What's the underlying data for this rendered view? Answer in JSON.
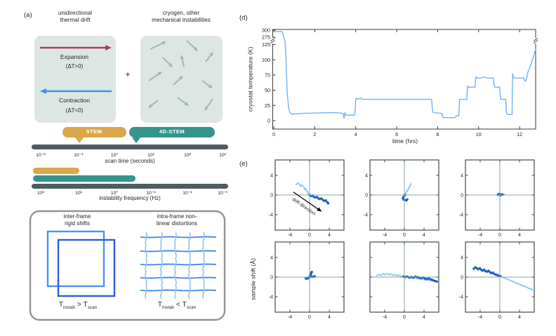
{
  "panel_a": {
    "label": "(a)",
    "thermal_box": {
      "title_line1": "unidirectional",
      "title_line2": "thermal drift",
      "expansion": "Expansion",
      "expansion_delta": "(ΔT>0)",
      "contraction": "Contraction",
      "contraction_delta": "(ΔT<0)"
    },
    "plus": "+",
    "instability_box": {
      "title_line1": "cryogen, other",
      "title_line2": "mechanical instabilities"
    },
    "stem_badge": "STEM",
    "fourd_stem_badge": "4D-STEM",
    "scan_time_axis": {
      "ticks": [
        "10⁻²",
        "10⁻¹",
        "10⁰",
        "10¹",
        "10²",
        "10³"
      ],
      "label": "scan time (seconds)"
    },
    "instability_axis": {
      "ticks": [
        "10²",
        "10¹",
        "10⁰",
        "10⁻¹",
        "10⁻²",
        "10⁻³"
      ],
      "label": "instability frequency (Hz)"
    },
    "distortion_box": {
      "interframe_title_line1": "inter-frame",
      "interframe_title_line2": "rigid shifts",
      "intraframe_title_line1": "intra-frame non-",
      "intraframe_title_line2": "linear distortions",
      "interframe_relation": {
        "lhs": "T",
        "lhs_sub": "instab",
        "op": ">",
        "rhs": "T",
        "rhs_sub": "scan"
      },
      "intraframe_relation": {
        "lhs": "T",
        "lhs_sub": "instab",
        "op": "<",
        "rhs": "T",
        "rhs_sub": "scan"
      }
    }
  },
  "panel_d": {
    "label": "(d)"
  },
  "panel_e": {
    "label": "(e)"
  },
  "chart_data": [
    {
      "id": "cryostat-temperature-vs-time",
      "type": "line",
      "title": "",
      "xlabel": "time (hrs)",
      "ylabel": "cryostat temperature (K)",
      "x_ticks": [
        0,
        2,
        4,
        6,
        8,
        10,
        12
      ],
      "y_ticks": [
        300,
        275,
        125,
        100,
        75,
        50,
        25,
        0
      ],
      "y_axis_break_between": [
        130,
        270
      ],
      "xlim": [
        -0.07,
        12.8
      ],
      "grid": false,
      "line_color": "#74b2f4",
      "points": [
        [
          0,
          295
        ],
        [
          0.38,
          295
        ],
        [
          0.43,
          292
        ],
        [
          0.5,
          272
        ],
        [
          0.55,
          180
        ],
        [
          0.6,
          100
        ],
        [
          0.65,
          48
        ],
        [
          0.72,
          22
        ],
        [
          0.78,
          14
        ],
        [
          0.85,
          11
        ],
        [
          1.0,
          11
        ],
        [
          1.4,
          12
        ],
        [
          2.0,
          12.5
        ],
        [
          2.6,
          13
        ],
        [
          3.1,
          13
        ],
        [
          3.35,
          12
        ],
        [
          3.4,
          11
        ],
        [
          3.43,
          4
        ],
        [
          3.47,
          13
        ],
        [
          3.52,
          9
        ],
        [
          3.95,
          9
        ],
        [
          3.98,
          20
        ],
        [
          4.0,
          34
        ],
        [
          4.03,
          37
        ],
        [
          4.07,
          35
        ],
        [
          4.26,
          37
        ],
        [
          4.3,
          35
        ],
        [
          7.7,
          35
        ],
        [
          7.76,
          14
        ],
        [
          7.8,
          13
        ],
        [
          8.2,
          12
        ],
        [
          8.27,
          5
        ],
        [
          8.85,
          5
        ],
        [
          8.9,
          8
        ],
        [
          9.03,
          8
        ],
        [
          9.07,
          35
        ],
        [
          9.42,
          35
        ],
        [
          9.46,
          57
        ],
        [
          9.5,
          55
        ],
        [
          9.82,
          55
        ],
        [
          9.86,
          72
        ],
        [
          9.92,
          70
        ],
        [
          10.15,
          70
        ],
        [
          10.25,
          72
        ],
        [
          10.35,
          70
        ],
        [
          10.72,
          70
        ],
        [
          10.76,
          57
        ],
        [
          10.82,
          55
        ],
        [
          11.03,
          55
        ],
        [
          11.07,
          35
        ],
        [
          11.32,
          35
        ],
        [
          11.36,
          12
        ],
        [
          11.42,
          10
        ],
        [
          11.63,
          10
        ],
        [
          11.66,
          77
        ],
        [
          11.72,
          70
        ],
        [
          12.2,
          70
        ],
        [
          12.26,
          65
        ],
        [
          12.3,
          65
        ],
        [
          12.34,
          70
        ],
        [
          12.4,
          79
        ],
        [
          12.55,
          92
        ],
        [
          12.68,
          106
        ],
        [
          12.78,
          117
        ]
      ]
    },
    {
      "id": "sample-shift-trajectories",
      "type": "scatter",
      "ylabel": "sample shift (Å)",
      "axis_ticks": [
        -4,
        0,
        4
      ],
      "xlim": [
        -7,
        7
      ],
      "ylim": [
        -7,
        7
      ],
      "legend": "none",
      "colors": {
        "dark": "#1d5fc1",
        "light": "#7fc2e9"
      },
      "annotation": {
        "subplot": 0,
        "text": "drift direction",
        "from": [
          -3.3,
          0.6
        ],
        "to": [
          2.5,
          -3.4
        ]
      },
      "subplots": [
        {
          "name": "row1-col1",
          "show_y_tick_labels": true,
          "light": [
            [
              -2.7,
              2.2
            ],
            [
              -2.3,
              2.4
            ],
            [
              -2.0,
              2.1
            ],
            [
              -1.8,
              1.8
            ],
            [
              -1.5,
              2.0
            ],
            [
              -1.2,
              1.6
            ],
            [
              -1.0,
              1.2
            ],
            [
              -0.8,
              1.3
            ],
            [
              -0.6,
              0.9
            ],
            [
              -0.4,
              0.6
            ],
            [
              -0.3,
              0.3
            ],
            [
              -0.1,
              0.1
            ]
          ],
          "dark": [
            [
              0.0,
              0.0
            ],
            [
              0.3,
              -0.2
            ],
            [
              0.6,
              -0.1
            ],
            [
              0.9,
              -0.4
            ],
            [
              1.2,
              -0.5
            ],
            [
              1.5,
              -0.4
            ],
            [
              1.8,
              -0.7
            ],
            [
              2.1,
              -0.8
            ],
            [
              2.4,
              -0.7
            ],
            [
              2.7,
              -1.0
            ],
            [
              3.0,
              -1.2
            ],
            [
              3.3,
              -1.1
            ],
            [
              3.6,
              -1.5
            ],
            [
              3.8,
              -1.7
            ]
          ]
        },
        {
          "name": "row1-col2",
          "show_y_tick_labels": true,
          "light": [
            [
              1.3,
              2.2
            ],
            [
              1.1,
              1.8
            ],
            [
              0.9,
              1.4
            ],
            [
              0.7,
              1.0
            ],
            [
              0.5,
              0.7
            ],
            [
              0.3,
              0.4
            ],
            [
              0.15,
              0.1
            ],
            [
              0.1,
              -0.2
            ]
          ],
          "dark": [
            [
              0.1,
              0.0
            ],
            [
              -0.1,
              -0.3
            ],
            [
              -0.3,
              -0.6
            ],
            [
              -0.2,
              -0.9
            ],
            [
              0.1,
              -1.0
            ],
            [
              0.4,
              -1.1
            ],
            [
              0.6,
              -0.9
            ]
          ]
        },
        {
          "name": "row1-col3",
          "show_y_tick_labels": true,
          "light": [
            [
              0.7,
              0.05
            ],
            [
              0.9,
              0.1
            ]
          ],
          "dark": [
            [
              -0.4,
              0.05
            ],
            [
              -0.2,
              0.2
            ],
            [
              0.0,
              0.1
            ],
            [
              0.2,
              0.15
            ],
            [
              0.4,
              0.05
            ],
            [
              0.1,
              -0.05
            ],
            [
              -0.1,
              0.05
            ],
            [
              0.55,
              0.1
            ]
          ]
        },
        {
          "name": "row2-col1",
          "show_y_tick_labels": true,
          "light": [
            [
              -0.95,
              -0.35
            ],
            [
              -0.75,
              -0.45
            ],
            [
              1.15,
              0.2
            ]
          ],
          "dark": [
            [
              -0.7,
              -0.25
            ],
            [
              -0.45,
              -0.3
            ],
            [
              -0.2,
              -0.15
            ],
            [
              -0.05,
              0.05
            ],
            [
              0.1,
              0.3
            ],
            [
              0.25,
              0.6
            ],
            [
              0.35,
              0.9
            ],
            [
              0.45,
              1.05
            ],
            [
              0.3,
              0.7
            ],
            [
              0.2,
              0.35
            ],
            [
              0.35,
              0.1
            ],
            [
              0.6,
              0.05
            ],
            [
              0.85,
              0.15
            ],
            [
              1.05,
              0.1
            ]
          ]
        },
        {
          "name": "row2-col2",
          "show_y_tick_labels": false,
          "light": [
            [
              -5.6,
              0.3
            ],
            [
              -5.2,
              0.5
            ],
            [
              -4.8,
              0.4
            ],
            [
              -4.4,
              0.7
            ],
            [
              -4.0,
              0.5
            ],
            [
              -3.6,
              0.7
            ],
            [
              -3.2,
              0.5
            ],
            [
              -2.8,
              0.6
            ],
            [
              -2.4,
              0.4
            ],
            [
              -2.0,
              0.5
            ],
            [
              -1.6,
              0.3
            ],
            [
              -1.2,
              0.4
            ],
            [
              -0.8,
              0.2
            ],
            [
              -0.4,
              0.1
            ],
            [
              6.8,
              -1.0
            ]
          ],
          "dark": [
            [
              -0.2,
              0.1
            ],
            [
              0.2,
              0.0
            ],
            [
              0.6,
              0.1
            ],
            [
              1.0,
              -0.1
            ],
            [
              1.4,
              0.0
            ],
            [
              1.8,
              -0.1
            ],
            [
              2.2,
              0.1
            ],
            [
              2.6,
              0.0
            ],
            [
              3.0,
              -0.1
            ],
            [
              3.4,
              -0.2
            ],
            [
              3.8,
              -0.1
            ],
            [
              4.2,
              -0.3
            ],
            [
              4.6,
              -0.4
            ],
            [
              5.0,
              -0.3
            ],
            [
              5.4,
              -0.5
            ],
            [
              5.8,
              -0.6
            ],
            [
              6.2,
              -0.8
            ],
            [
              6.6,
              -0.9
            ]
          ]
        },
        {
          "name": "row2-col3",
          "show_y_tick_labels": true,
          "light": [
            [
              0.3,
              0.1
            ],
            [
              0.7,
              -0.1
            ],
            [
              1.1,
              -0.3
            ],
            [
              1.5,
              -0.4
            ],
            [
              1.9,
              -0.6
            ],
            [
              2.3,
              -0.8
            ],
            [
              2.7,
              -0.9
            ],
            [
              3.1,
              -1.1
            ],
            [
              3.5,
              -1.3
            ],
            [
              3.9,
              -1.4
            ],
            [
              4.3,
              -1.6
            ],
            [
              4.7,
              -1.8
            ],
            [
              5.1,
              -1.9
            ],
            [
              5.5,
              -2.1
            ],
            [
              5.9,
              -2.3
            ],
            [
              6.3,
              -2.4
            ],
            [
              6.6,
              -2.6
            ]
          ],
          "dark": [
            [
              -5.3,
              1.7
            ],
            [
              -5.0,
              2.0
            ],
            [
              -4.7,
              1.8
            ],
            [
              -4.4,
              1.6
            ],
            [
              -4.1,
              1.8
            ],
            [
              -3.8,
              1.5
            ],
            [
              -3.5,
              1.3
            ],
            [
              -3.2,
              1.5
            ],
            [
              -2.9,
              1.2
            ],
            [
              -2.6,
              1.1
            ],
            [
              -2.3,
              1.3
            ],
            [
              -2.0,
              1.0
            ],
            [
              -1.7,
              0.8
            ],
            [
              -1.4,
              0.9
            ],
            [
              -1.1,
              0.6
            ],
            [
              -0.8,
              0.5
            ],
            [
              -0.5,
              0.4
            ],
            [
              -0.2,
              0.3
            ],
            [
              0.1,
              0.2
            ]
          ]
        }
      ]
    }
  ],
  "colors": {
    "panel_box_bg": "#dee6e3",
    "gray_arrow": "#9fb6bc",
    "expansion_arrow": "#b23a5e",
    "contraction_arrow": "#3b93ea",
    "stem_gold": "#dca64a",
    "fourd_teal": "#35948b",
    "scale_bar": "#4d5c60",
    "frame_square_light": "#4a93f0",
    "frame_square_dark": "#2e5bd8",
    "grid_horizontal": "#3d87e8",
    "grid_vertical": "#9cc4f0",
    "distortion_box_border": "#8f9496",
    "spine": "#3a3a3a",
    "crosshair": "#8aa2a8",
    "temperature_line": "#74b2f4",
    "shift_dark": "#1d5fc1",
    "shift_light": "#7fc2e9"
  }
}
